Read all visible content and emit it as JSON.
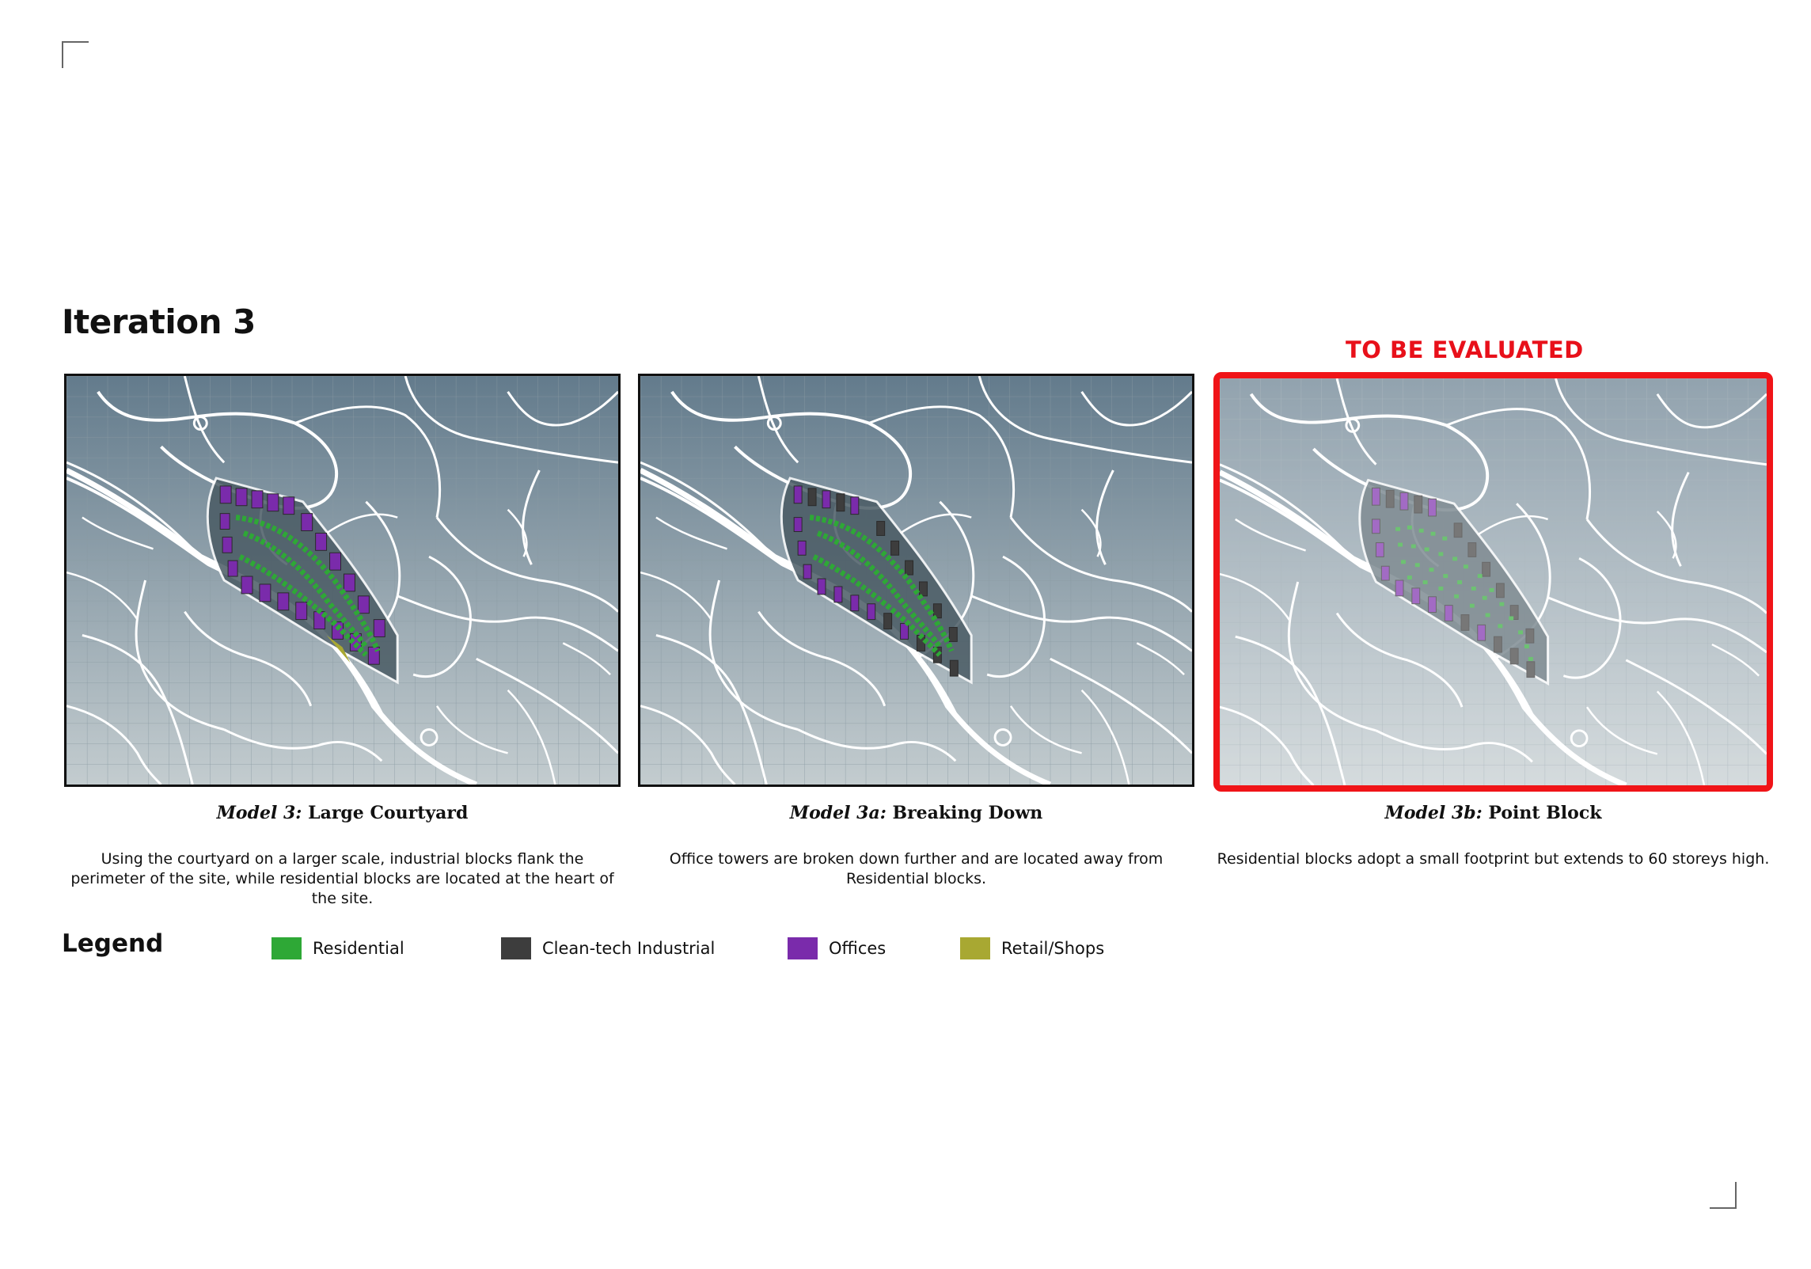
{
  "page": {
    "title": "Iteration 3",
    "highlight_label": "TO BE EVALUATED"
  },
  "models": [
    {
      "model_id": "Model 3:",
      "name": "Large Courtyard",
      "description": "Using the courtyard on a larger scale, industrial blocks flank the perimeter of the site, while residential blocks are located at the heart of the site."
    },
    {
      "model_id": "Model 3a:",
      "name": "Breaking Down",
      "description": "Office towers are broken down further and are located away from Residential blocks."
    },
    {
      "model_id": "Model 3b:",
      "name": "Point Block",
      "description": "Residential blocks adopt a small footprint but extends to 60 storeys high."
    }
  ],
  "legend": {
    "title": "Legend",
    "items": [
      {
        "label": "Residential",
        "color": "#2ea836"
      },
      {
        "label": "Clean-tech Industrial",
        "color": "#3d3d3d"
      },
      {
        "label": "Offices",
        "color": "#7a2bab"
      },
      {
        "label": "Retail/Shops",
        "color": "#a8a832"
      }
    ]
  },
  "colors": {
    "map_top": "#637b8c",
    "map_bottom": "#c3cccf",
    "road": "#ffffff",
    "highlight": "#f01418"
  }
}
